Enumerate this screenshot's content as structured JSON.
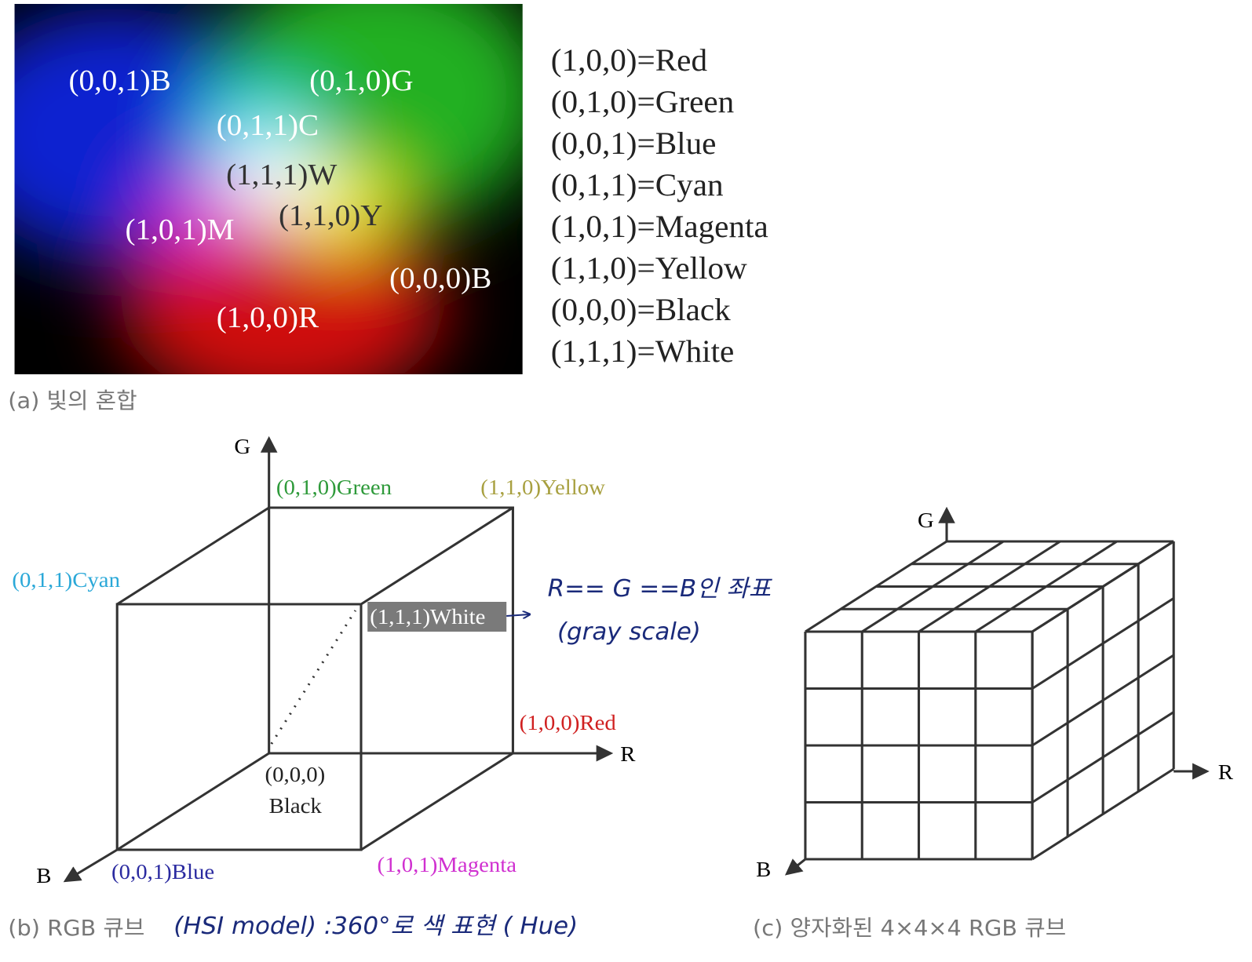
{
  "panel_a": {
    "photo_labels": [
      "(0,0,1)B",
      "(0,1,0)G",
      "(0,1,1)C",
      "(1,1,1)W",
      "(1,1,0)Y",
      "(1,0,1)M",
      "(0,0,0)B",
      "(1,0,0)R"
    ],
    "legend": [
      "(1,0,0)=Red",
      "(0,1,0)=Green",
      "(0,0,1)=Blue",
      "(0,1,1)=Cyan",
      "(1,0,1)=Magenta",
      "(1,1,0)=Yellow",
      "(0,0,0)=Black",
      "(1,1,1)=White"
    ],
    "caption": "(a) 빛의 혼합"
  },
  "panel_b": {
    "axes": {
      "g": "G",
      "r": "R",
      "b": "B"
    },
    "vertices": {
      "green": "(0,1,0)Green",
      "yellow": "(1,1,0)Yellow",
      "cyan": "(0,1,1)Cyan",
      "white": "(1,1,1)White",
      "red": "(1,0,0)Red",
      "origin": "(0,0,0)",
      "black": "Black",
      "blue": "(0,0,1)Blue",
      "magenta": "(1,0,1)Magenta"
    },
    "annotation": [
      "R== G ==B인 좌표",
      "(gray scale)"
    ],
    "caption": "(b) RGB 큐브",
    "handwritten_note": "(HSI model) :360°로 색 표현 ( Hue)"
  },
  "panel_c": {
    "axes": {
      "g": "G",
      "r": "R",
      "b": "B"
    },
    "caption": "(c) 양자화된 4×4×4 RGB 큐브"
  }
}
